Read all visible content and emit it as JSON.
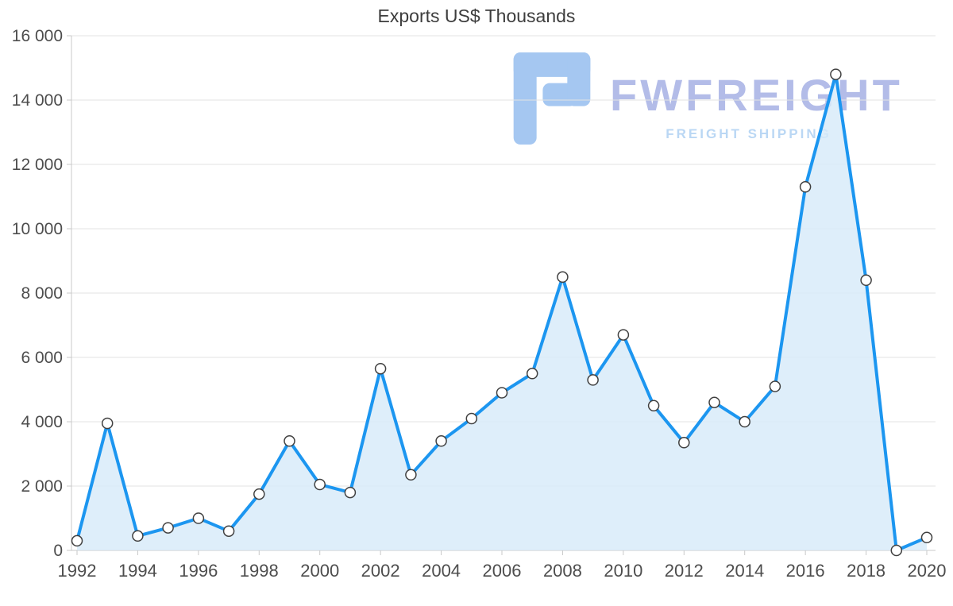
{
  "page": {
    "title": "Exports US$ Thousands"
  },
  "watermark": {
    "brand": "FWFREIGHT",
    "tagline": "FREIGHT SHIPPING",
    "brand_color": "#a9b3e5",
    "tagline_color": "#bad7f4",
    "logo_color": "#9ec3f0"
  },
  "chart_data": {
    "type": "area",
    "title": "Exports US$ Thousands",
    "xlabel": "",
    "ylabel": "",
    "x": [
      1992,
      1993,
      1994,
      1995,
      1996,
      1997,
      1998,
      1999,
      2000,
      2001,
      2002,
      2003,
      2004,
      2005,
      2006,
      2007,
      2008,
      2009,
      2010,
      2011,
      2012,
      2013,
      2014,
      2015,
      2016,
      2017,
      2018,
      2019,
      2020
    ],
    "values": [
      300,
      3950,
      450,
      700,
      1000,
      600,
      1750,
      3400,
      2050,
      1800,
      5650,
      2350,
      3400,
      4100,
      4900,
      5500,
      8500,
      5300,
      6700,
      4500,
      3350,
      4600,
      4000,
      5100,
      11300,
      14800,
      8400,
      0,
      400
    ],
    "ylim": [
      0,
      16000
    ],
    "ytick_step": 2000,
    "xtick_step": 2,
    "grid": true,
    "legend": false,
    "colors": {
      "line": "#1c96f0",
      "fill": "#d6eaf9",
      "marker_fill": "#ffffff",
      "marker_stroke": "#404040",
      "grid": "#e3e3e3",
      "axis": "#c9c9c9",
      "text": "#4d4d4d",
      "title": "#3d3d3d"
    }
  }
}
